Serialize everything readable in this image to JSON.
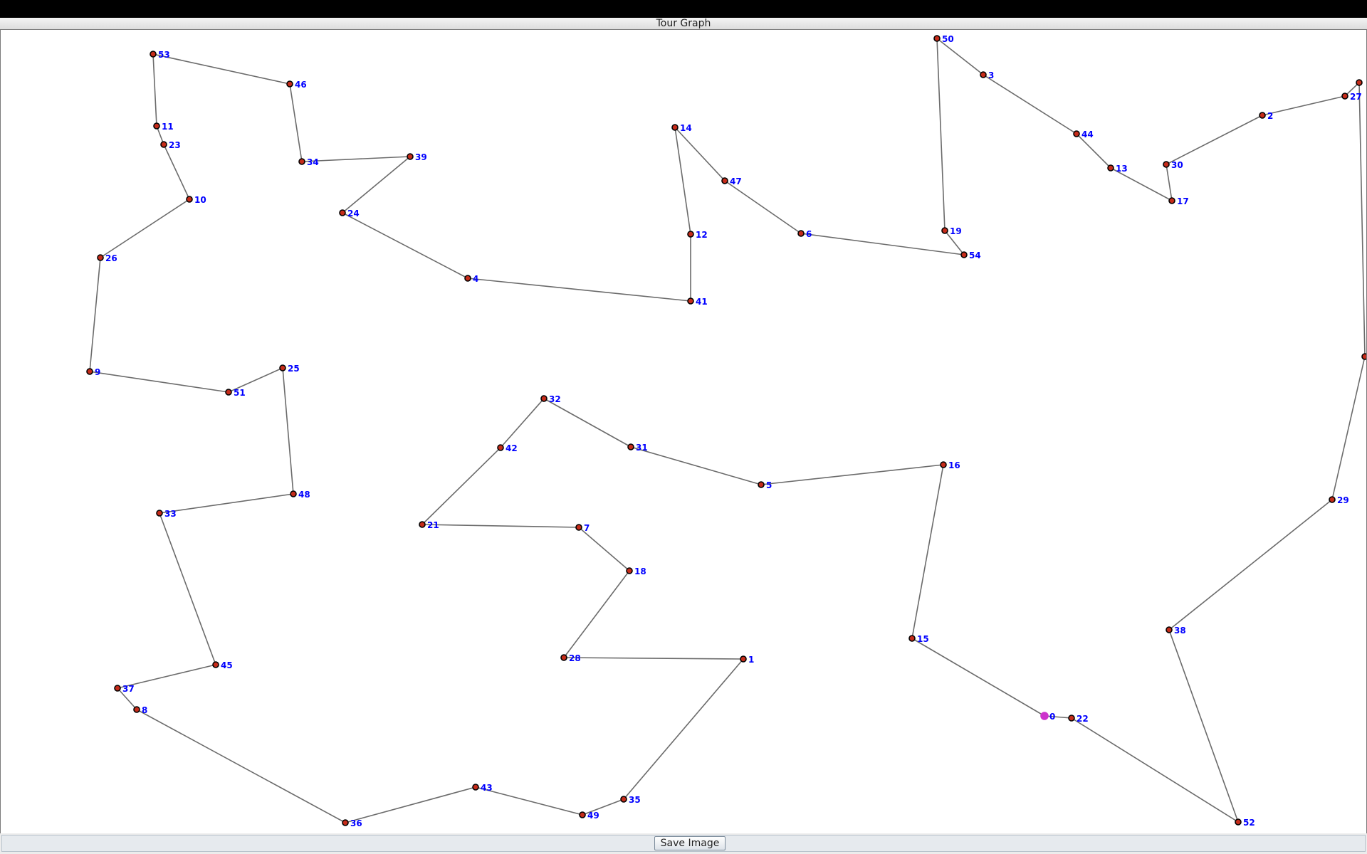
{
  "window": {
    "title": "Tour Graph"
  },
  "toolbar": {
    "save_label": "Save Image"
  },
  "colors": {
    "edge": "#6b6b6b",
    "node": "#c62c1a",
    "current_node": "#cc33cc",
    "label": "#0000ff"
  },
  "graph": {
    "current_node": "0",
    "nodes": [
      {
        "id": "53",
        "label": "53"
      },
      {
        "id": "46",
        "label": "46"
      },
      {
        "id": "34",
        "label": "34"
      },
      {
        "id": "39",
        "label": "39"
      },
      {
        "id": "24",
        "label": "24"
      },
      {
        "id": "4",
        "label": "4"
      },
      {
        "id": "41",
        "label": "41"
      },
      {
        "id": "12",
        "label": "12"
      },
      {
        "id": "14",
        "label": "14"
      },
      {
        "id": "47",
        "label": "47"
      },
      {
        "id": "6",
        "label": "6"
      },
      {
        "id": "54",
        "label": "54"
      },
      {
        "id": "19",
        "label": "19"
      },
      {
        "id": "50",
        "label": "50"
      },
      {
        "id": "3",
        "label": "3"
      },
      {
        "id": "44",
        "label": "44"
      },
      {
        "id": "13",
        "label": "13"
      },
      {
        "id": "17",
        "label": "17"
      },
      {
        "id": "30",
        "label": "30"
      },
      {
        "id": "2",
        "label": "2"
      },
      {
        "id": "27",
        "label": "27"
      },
      {
        "id": "p",
        "label": ""
      },
      {
        "id": "q",
        "label": ""
      },
      {
        "id": "29",
        "label": "29"
      },
      {
        "id": "38",
        "label": "38"
      },
      {
        "id": "52",
        "label": "52"
      },
      {
        "id": "22",
        "label": "22"
      },
      {
        "id": "0",
        "label": "0"
      },
      {
        "id": "15",
        "label": "15"
      },
      {
        "id": "16",
        "label": "16"
      },
      {
        "id": "5",
        "label": "5"
      },
      {
        "id": "31",
        "label": "31"
      },
      {
        "id": "32",
        "label": "32"
      },
      {
        "id": "42",
        "label": "42"
      },
      {
        "id": "21",
        "label": "21"
      },
      {
        "id": "7",
        "label": "7"
      },
      {
        "id": "18",
        "label": "18"
      },
      {
        "id": "28",
        "label": "28"
      },
      {
        "id": "1",
        "label": "1"
      },
      {
        "id": "35",
        "label": "35"
      },
      {
        "id": "49",
        "label": "49"
      },
      {
        "id": "43",
        "label": "43"
      },
      {
        "id": "36",
        "label": "36"
      },
      {
        "id": "8",
        "label": "8"
      },
      {
        "id": "37",
        "label": "37"
      },
      {
        "id": "45",
        "label": "45"
      },
      {
        "id": "33",
        "label": "33"
      },
      {
        "id": "48",
        "label": "48"
      },
      {
        "id": "25",
        "label": "25"
      },
      {
        "id": "51",
        "label": "51"
      },
      {
        "id": "9",
        "label": "9"
      },
      {
        "id": "26",
        "label": "26"
      },
      {
        "id": "10",
        "label": "10"
      },
      {
        "id": "23",
        "label": "23"
      },
      {
        "id": "11",
        "label": "11"
      }
    ],
    "tour": [
      "53",
      "46",
      "34",
      "39",
      "24",
      "4",
      "41",
      "12",
      "14",
      "47",
      "6",
      "54",
      "19",
      "50",
      "3",
      "44",
      "13",
      "17",
      "30",
      "2",
      "27",
      "p",
      "q",
      "29",
      "38",
      "52",
      "22",
      "0",
      "15",
      "16",
      "5",
      "31",
      "32",
      "42",
      "21",
      "7",
      "18",
      "28",
      "1",
      "35",
      "49",
      "43",
      "36",
      "8",
      "37",
      "45",
      "33",
      "48",
      "25",
      "51",
      "9",
      "26",
      "10",
      "23",
      "11",
      "53"
    ]
  }
}
